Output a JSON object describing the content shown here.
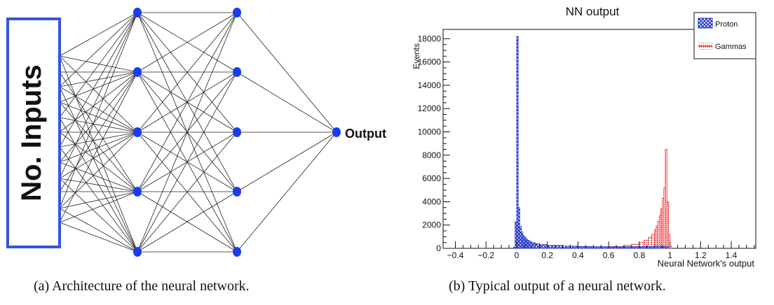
{
  "figure_a": {
    "input_box_label": "No. Inputs",
    "output_label": "Output",
    "caption": "(a) Architecture of the neural network.",
    "layers": [
      5,
      5,
      1
    ],
    "colors": {
      "node": "#1a3cf0",
      "box_border": "#3355dd",
      "edge": "#222222"
    }
  },
  "figure_b": {
    "caption": "(b) Typical output of a neural network.",
    "colors": {
      "proton": "#2233cc",
      "gammas": "#ee2222"
    }
  },
  "chart_data": {
    "type": "bar",
    "title": "NN output",
    "xlabel": "Neural Network's output",
    "ylabel": "Events",
    "xlim": [
      -0.48,
      1.56
    ],
    "ylim": [
      0,
      18800
    ],
    "xticks": [
      -0.4,
      -0.2,
      0,
      0.2,
      0.4,
      0.6,
      0.8,
      1,
      1.2,
      1.4
    ],
    "xtick_labels": [
      "−0.4",
      "−0.2",
      "0",
      "0.2",
      "0.4",
      "0.6",
      "0.8",
      "1",
      "1.2",
      "1.4"
    ],
    "yticks": [
      0,
      2000,
      4000,
      6000,
      8000,
      10000,
      12000,
      14000,
      16000,
      18000
    ],
    "ytick_labels": [
      "0",
      "2000",
      "4000",
      "6000",
      "8000",
      "10000",
      "12000",
      "14000",
      "16000",
      "18000"
    ],
    "bin_width": 0.01,
    "legend_position": "top-right",
    "series": [
      {
        "name": "Proton",
        "style": "hatched fill",
        "x": [
          -0.02,
          -0.01,
          0.0,
          0.01,
          0.02,
          0.03,
          0.04,
          0.05,
          0.06,
          0.07,
          0.08,
          0.09,
          0.1,
          0.12,
          0.15,
          0.2,
          0.3,
          0.4,
          0.5,
          0.6,
          0.7,
          0.8,
          0.9,
          0.95,
          0.98
        ],
        "values": [
          100,
          2300,
          18200,
          3500,
          1900,
          1400,
          1100,
          950,
          800,
          700,
          620,
          540,
          480,
          400,
          320,
          250,
          190,
          160,
          140,
          130,
          140,
          160,
          180,
          170,
          150
        ]
      },
      {
        "name": "Gammas",
        "style": "dotted fill, solid outline",
        "x": [
          -0.01,
          0.0,
          0.01,
          0.05,
          0.1,
          0.2,
          0.3,
          0.4,
          0.5,
          0.6,
          0.7,
          0.75,
          0.8,
          0.83,
          0.86,
          0.88,
          0.9,
          0.91,
          0.92,
          0.93,
          0.94,
          0.95,
          0.96,
          0.97,
          0.98,
          0.99,
          1.0
        ],
        "values": [
          60,
          350,
          150,
          60,
          40,
          40,
          50,
          70,
          100,
          150,
          250,
          350,
          500,
          700,
          950,
          1200,
          1600,
          1900,
          2300,
          2800,
          3400,
          4300,
          5200,
          8500,
          4000,
          1200,
          200
        ]
      }
    ]
  }
}
